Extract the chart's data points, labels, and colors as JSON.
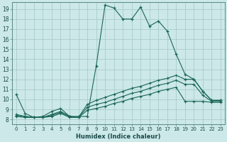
{
  "xlabel": "Humidex (Indice chaleur)",
  "background_color": "#cce8e8",
  "grid_color": "#aacccc",
  "line_color": "#1a6655",
  "xlim": [
    -0.5,
    23.5
  ],
  "ylim": [
    7.5,
    19.7
  ],
  "xticks": [
    0,
    1,
    2,
    3,
    4,
    5,
    6,
    7,
    8,
    9,
    10,
    11,
    12,
    13,
    14,
    15,
    16,
    17,
    18,
    19,
    20,
    21,
    22,
    23
  ],
  "yticks": [
    8,
    9,
    10,
    11,
    12,
    13,
    14,
    15,
    16,
    17,
    18,
    19
  ],
  "series1_x": [
    0,
    1,
    2,
    3,
    4,
    5,
    6,
    7,
    8,
    9,
    10,
    11,
    12,
    13,
    14,
    15,
    16,
    17,
    18,
    19,
    20,
    21,
    22,
    23
  ],
  "series1_y": [
    10.5,
    8.6,
    8.2,
    8.3,
    8.8,
    9.1,
    8.3,
    8.3,
    8.3,
    13.3,
    19.4,
    19.1,
    18.0,
    18.0,
    19.2,
    17.3,
    17.8,
    16.8,
    14.5,
    12.5,
    12.0,
    10.8,
    9.9,
    9.9
  ],
  "series2_x": [
    0,
    1,
    2,
    3,
    4,
    5,
    6,
    7,
    8,
    9,
    10,
    11,
    12,
    13,
    14,
    15,
    16,
    17,
    18,
    19,
    20,
    21,
    22,
    23
  ],
  "series2_y": [
    8.5,
    8.3,
    8.2,
    8.2,
    8.5,
    8.8,
    8.3,
    8.2,
    9.5,
    9.9,
    10.2,
    10.5,
    10.8,
    11.1,
    11.3,
    11.6,
    11.9,
    12.1,
    12.4,
    12.0,
    12.0,
    10.8,
    9.9,
    9.9
  ],
  "series3_x": [
    0,
    1,
    2,
    3,
    4,
    5,
    6,
    7,
    8,
    9,
    10,
    11,
    12,
    13,
    14,
    15,
    16,
    17,
    18,
    19,
    20,
    21,
    22,
    23
  ],
  "series3_y": [
    8.4,
    8.3,
    8.2,
    8.2,
    8.4,
    8.7,
    8.3,
    8.2,
    9.2,
    9.5,
    9.7,
    10.0,
    10.3,
    10.6,
    10.8,
    11.1,
    11.4,
    11.6,
    11.9,
    11.5,
    11.5,
    10.4,
    9.8,
    9.8
  ],
  "series4_x": [
    0,
    1,
    2,
    3,
    4,
    5,
    6,
    7,
    8,
    9,
    10,
    11,
    12,
    13,
    14,
    15,
    16,
    17,
    18,
    19,
    20,
    21,
    22,
    23
  ],
  "series4_y": [
    8.3,
    8.2,
    8.2,
    8.2,
    8.3,
    8.6,
    8.2,
    8.2,
    8.9,
    9.1,
    9.3,
    9.6,
    9.8,
    10.1,
    10.3,
    10.5,
    10.8,
    11.0,
    11.2,
    9.8,
    9.8,
    9.8,
    9.7,
    9.7
  ]
}
